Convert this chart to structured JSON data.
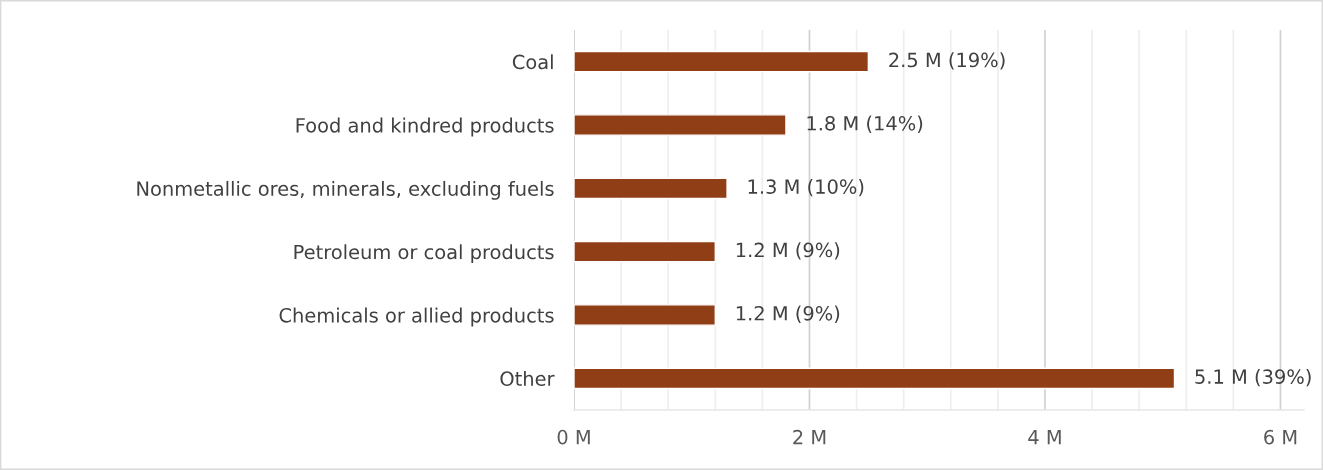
{
  "chart_data": {
    "type": "bar",
    "orientation": "horizontal",
    "categories": [
      "Coal",
      "Food and kindred products",
      "Nonmetallic ores, minerals, excluding fuels",
      "Petroleum or coal products",
      "Chemicals or allied products",
      "Other"
    ],
    "values": [
      2.5,
      1.8,
      1.3,
      1.2,
      1.2,
      5.1
    ],
    "value_labels": [
      "2.5 M (19%)",
      "1.8 M (14%)",
      "1.3 M (10%)",
      "1.2 M (9%)",
      "1.2 M (9%)",
      "5.1 M (39%)"
    ],
    "color": "#8f3e16",
    "xlim": [
      0,
      6.2
    ],
    "xticks": [
      {
        "value": 0,
        "label": "0 M"
      },
      {
        "value": 0.4,
        "label": null
      },
      {
        "value": 0.8,
        "label": null
      },
      {
        "value": 1.2,
        "label": null
      },
      {
        "value": 1.6,
        "label": null
      },
      {
        "value": 2,
        "label": "2 M"
      },
      {
        "value": 2.4,
        "label": null
      },
      {
        "value": 2.8,
        "label": null
      },
      {
        "value": 3.2,
        "label": null
      },
      {
        "value": 3.6,
        "label": null
      },
      {
        "value": 4,
        "label": "4 M"
      },
      {
        "value": 4.4,
        "label": null
      },
      {
        "value": 4.8,
        "label": null
      },
      {
        "value": 5.2,
        "label": null
      },
      {
        "value": 5.6,
        "label": null
      },
      {
        "value": 6,
        "label": "6 M"
      }
    ],
    "grid": "x"
  }
}
